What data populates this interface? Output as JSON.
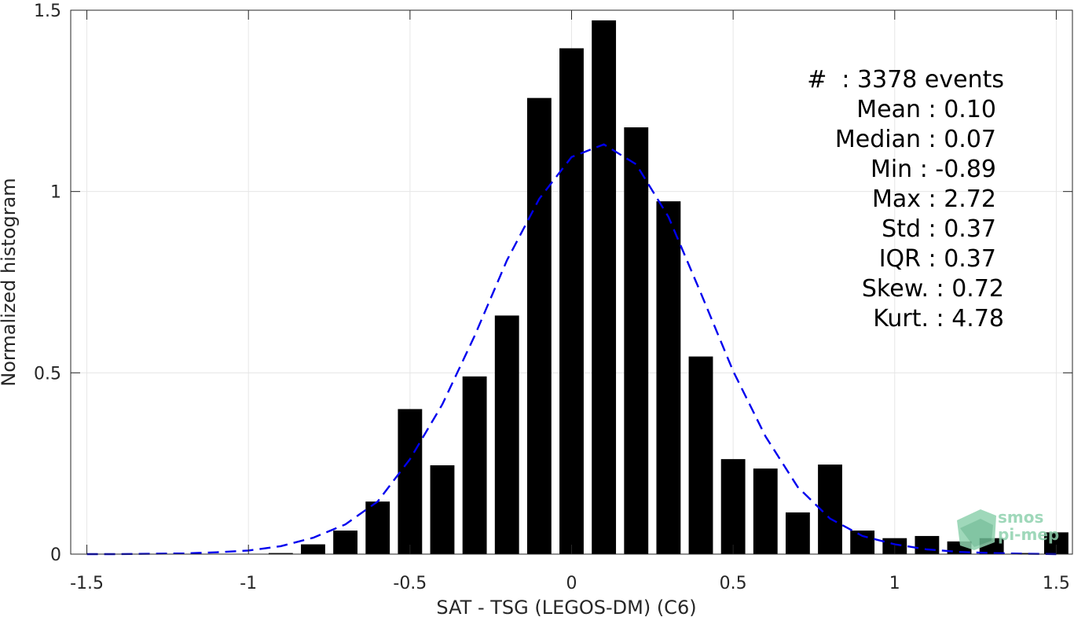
{
  "chart_data": {
    "type": "bar",
    "xlabel": "SAT - TSG (LEGOS-DM) (C6)",
    "ylabel": "Normalized histogram",
    "xlim": [
      -1.55,
      1.55
    ],
    "ylim": [
      0,
      1.5
    ],
    "x_ticks": [
      -1.5,
      -1,
      -0.5,
      0,
      0.5,
      1,
      1.5
    ],
    "x_tick_labels": [
      "-1.5",
      "-1",
      "-0.5",
      "0",
      "0.5",
      "1",
      "1.5"
    ],
    "y_ticks": [
      0,
      0.5,
      1,
      1.5
    ],
    "y_tick_labels": [
      "0",
      "0.5",
      "1",
      "1.5"
    ],
    "grid": true,
    "series": [
      {
        "kind": "bar",
        "color": "#000000",
        "bin_width": 0.1,
        "x": [
          -1.5,
          -1.4,
          -1.3,
          -1.2,
          -1.1,
          -1.0,
          -0.9,
          -0.8,
          -0.7,
          -0.6,
          -0.5,
          -0.4,
          -0.3,
          -0.2,
          -0.1,
          0.0,
          0.1,
          0.2,
          0.3,
          0.4,
          0.5,
          0.6,
          0.7,
          0.8,
          0.9,
          1.0,
          1.1,
          1.2,
          1.3,
          1.4,
          1.5
        ],
        "values": [
          0,
          0,
          0,
          0,
          0,
          0,
          0.003,
          0.027,
          0.065,
          0.145,
          0.4,
          0.245,
          0.49,
          0.658,
          1.258,
          1.395,
          1.472,
          1.177,
          0.973,
          0.545,
          0.262,
          0.236,
          0.115,
          0.247,
          0.065,
          0.044,
          0.05,
          0.035,
          0.044,
          0.003,
          0.06
        ]
      },
      {
        "kind": "line",
        "style": "dashed",
        "color": "#0000ee",
        "x": [
          -1.5,
          -1.4,
          -1.3,
          -1.2,
          -1.1,
          -1.0,
          -0.9,
          -0.8,
          -0.7,
          -0.6,
          -0.5,
          -0.4,
          -0.3,
          -0.2,
          -0.1,
          0.0,
          0.1,
          0.2,
          0.3,
          0.4,
          0.5,
          0.6,
          0.7,
          0.8,
          0.9,
          1.0,
          1.1,
          1.2,
          1.3,
          1.4,
          1.5
        ],
        "values": [
          0.0,
          0.0,
          0.001,
          0.002,
          0.005,
          0.01,
          0.022,
          0.045,
          0.082,
          0.145,
          0.262,
          0.413,
          0.602,
          0.81,
          0.98,
          1.095,
          1.13,
          1.075,
          0.93,
          0.72,
          0.505,
          0.325,
          0.185,
          0.098,
          0.05,
          0.027,
          0.013,
          0.006,
          0.003,
          0.001,
          0.0
        ]
      }
    ],
    "stats": [
      "#  : 3378 events",
      "Mean : 0.10",
      "Median : 0.07",
      "Min : -0.89",
      "Max : 2.72",
      "Std : 0.37",
      "IQR : 0.37",
      "Skew. : 0.72",
      "Kurt. : 4.78"
    ]
  },
  "logo": {
    "line1": "smos",
    "line2": "pi-mep",
    "color": "#8fd2ae"
  }
}
